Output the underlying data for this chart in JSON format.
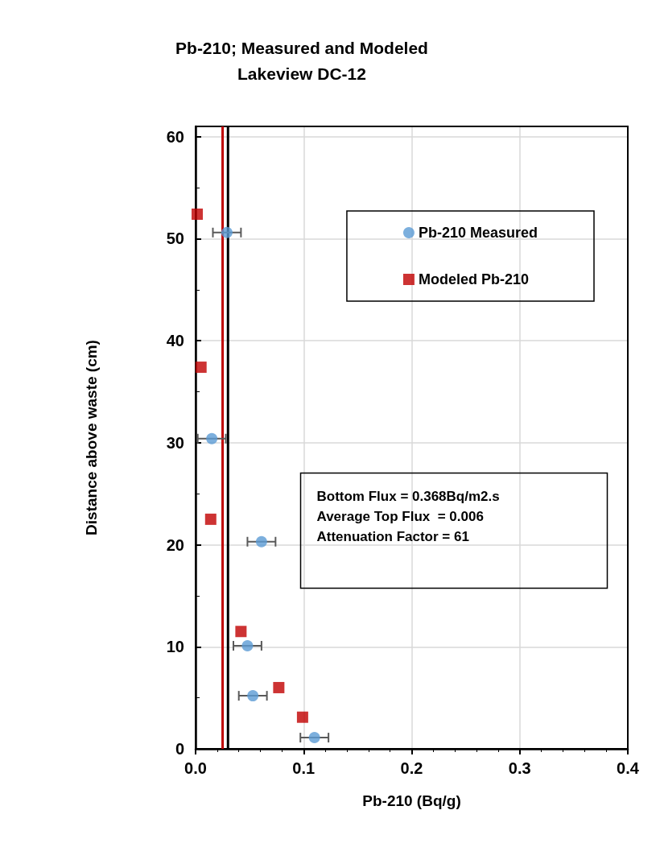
{
  "chart_data": {
    "type": "scatter",
    "title": "Pb-210; Measured and Modeled\nLakeview DC-12",
    "xlabel": "Pb-210 (Bq/g)",
    "ylabel": "Distance above waste (cm)",
    "xlim": [
      0,
      0.4
    ],
    "xticks": [
      {
        "value": 0,
        "label": "0.0"
      },
      0.1,
      0.2,
      0.3,
      0.4
    ],
    "ylim": [
      0,
      61
    ],
    "yticks": [
      0,
      10,
      20,
      30,
      40,
      50,
      60
    ],
    "grid": true,
    "legend": "top right",
    "series": [
      {
        "name": "Pb-210 Measured",
        "color": "#5b9bd5",
        "marker": "circle",
        "x": [
          0.029,
          0.015,
          0.061,
          0.048,
          0.053,
          0.11
        ],
        "values": [
          50.6,
          30.4,
          20.3,
          10.1,
          5.2,
          1.1
        ],
        "xerrors": [
          0.013,
          0.013,
          0.013,
          0.013,
          0.013,
          0.013
        ]
      },
      {
        "name": "Modeled Pb-210",
        "color": "#c00000",
        "marker": "square",
        "x": [
          0.0015,
          0.005,
          0.014,
          0.042,
          0.077,
          0.099
        ],
        "values": [
          52.4,
          37.4,
          22.5,
          11.5,
          6.0,
          3.1
        ]
      }
    ],
    "ref_lines": [
      {
        "axis": "x",
        "value": 0.025,
        "color": "#c00000",
        "line_style": "solid"
      },
      {
        "axis": "x",
        "value": 0.03,
        "color": "#000000",
        "line_style": "solid"
      }
    ],
    "annotations": [
      "Bottom Flux = 0.368Bq/m2.s",
      "Average Top Flux  = 0.006",
      "Attenuation Factor = 61"
    ]
  }
}
